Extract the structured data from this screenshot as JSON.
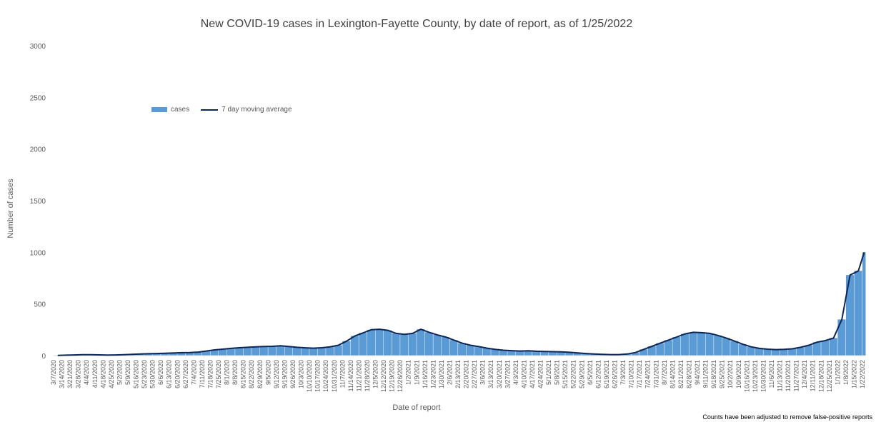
{
  "chart_data": {
    "type": "bar",
    "title": "New COVID-19 cases in Lexington-Fayette County, by date of report, as of 1/25/2022",
    "xlabel": "Date of report",
    "ylabel": "Number of cases",
    "ylim": [
      0,
      3000
    ],
    "yticks": [
      0,
      500,
      1000,
      1500,
      2000,
      2500,
      3000
    ],
    "x_start": "3/7/2020",
    "x_end": "1/25/2022",
    "xtick_labels": [
      "3/7/2020",
      "3/14/2020",
      "3/21/2020",
      "3/28/2020",
      "4/4/2020",
      "4/11/2020",
      "4/18/2020",
      "4/25/2020",
      "5/2/2020",
      "5/9/2020",
      "5/16/2020",
      "5/23/2020",
      "5/30/2020",
      "6/6/2020",
      "6/13/2020",
      "6/20/2020",
      "6/27/2020",
      "7/4/2020",
      "7/11/2020",
      "7/18/2020",
      "7/25/2020",
      "8/1/2020",
      "8/8/2020",
      "8/15/2020",
      "8/22/2020",
      "8/29/2020",
      "9/5/2020",
      "9/12/2020",
      "9/19/2020",
      "9/26/2020",
      "10/3/2020",
      "10/10/2020",
      "10/17/2020",
      "10/24/2020",
      "10/31/2020",
      "11/7/2020",
      "11/14/2020",
      "11/21/2020",
      "11/28/2020",
      "12/5/2020",
      "12/12/2020",
      "12/19/2020",
      "12/26/2020",
      "1/2/2021",
      "1/9/2021",
      "1/16/2021",
      "1/23/2021",
      "1/30/2021",
      "2/6/2021",
      "2/13/2021",
      "2/20/2021",
      "2/27/2021",
      "3/6/2021",
      "3/13/2021",
      "3/20/2021",
      "3/27/2021",
      "4/3/2021",
      "4/10/2021",
      "4/17/2021",
      "4/24/2021",
      "5/1/2021",
      "5/8/2021",
      "5/15/2021",
      "5/22/2021",
      "5/29/2021",
      "6/5/2021",
      "6/12/2021",
      "6/19/2021",
      "6/26/2021",
      "7/3/2021",
      "7/10/2021",
      "7/17/2021",
      "7/24/2021",
      "7/31/2021",
      "8/7/2021",
      "8/14/2021",
      "8/21/2021",
      "8/28/2021",
      "9/4/2021",
      "9/11/2021",
      "9/18/2021",
      "9/25/2021",
      "10/2/2021",
      "10/9/2021",
      "10/16/2021",
      "10/23/2021",
      "10/30/2021",
      "11/6/2021",
      "11/13/2021",
      "11/20/2021",
      "11/27/2021",
      "12/4/2021",
      "12/11/2021",
      "12/18/2021",
      "12/25/2021",
      "1/1/2022",
      "1/8/2022",
      "1/15/2022",
      "1/22/2022"
    ],
    "weekly_average_cases": [
      2,
      4,
      6,
      8,
      9,
      7,
      5,
      6,
      8,
      12,
      16,
      18,
      20,
      22,
      25,
      28,
      30,
      34,
      44,
      55,
      62,
      70,
      76,
      80,
      84,
      88,
      90,
      95,
      88,
      80,
      75,
      72,
      76,
      85,
      100,
      140,
      190,
      220,
      250,
      255,
      245,
      215,
      205,
      215,
      255,
      225,
      200,
      180,
      150,
      120,
      100,
      88,
      72,
      60,
      52,
      48,
      44,
      46,
      42,
      40,
      38,
      36,
      32,
      26,
      20,
      15,
      12,
      10,
      10,
      15,
      30,
      60,
      90,
      120,
      150,
      180,
      210,
      225,
      222,
      215,
      195,
      170,
      140,
      110,
      85,
      70,
      62,
      58,
      60,
      66,
      80,
      100,
      130,
      145,
      170,
      350,
      780,
      820,
      1000
    ],
    "series": [
      {
        "name": "cases",
        "color": "#5b9bd5"
      },
      {
        "name": "7 day moving average",
        "color": "#0d2557"
      }
    ],
    "grid": false,
    "legend_position": "upper-left"
  },
  "footnote": "Counts have been adjusted to remove false-positive reports"
}
